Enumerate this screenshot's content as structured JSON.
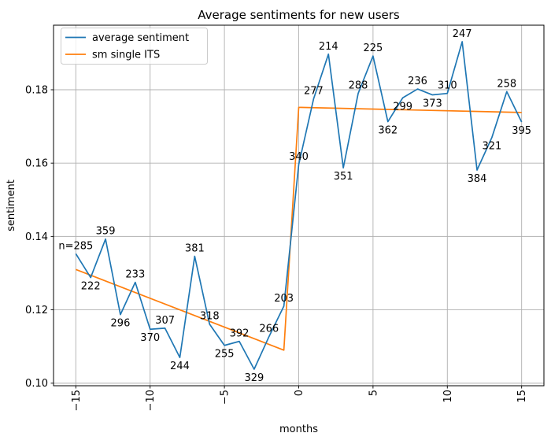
{
  "figure": {
    "background": "#ffffff"
  },
  "chart_data": {
    "type": "line",
    "title": "Average sentiments for new users",
    "xlabel": "months",
    "ylabel": "sentiment",
    "xlim": [
      -16.5,
      16.5
    ],
    "ylim": [
      0.0993,
      0.1976
    ],
    "grid": true,
    "legend_position": "upper left",
    "xticks": [
      -15,
      -10,
      -5,
      0,
      5,
      10,
      15
    ],
    "xtick_labels": [
      "−15",
      "−10",
      "−5",
      "0",
      "5",
      "10",
      "15"
    ],
    "yticks": [
      0.1,
      0.12,
      0.14,
      0.16,
      0.18
    ],
    "ytick_labels": [
      "0.10",
      "0.12",
      "0.14",
      "0.16",
      "0.18"
    ],
    "colors": {
      "average_sentiment": "#1f77b4",
      "sm_single_its": "#ff7f0e",
      "grid": "#b0b0b0",
      "spine": "#000000",
      "legend_border": "#cccccc"
    },
    "series": [
      {
        "name": "average sentiment",
        "x": [
          -15,
          -14,
          -13,
          -12,
          -11,
          -10,
          -9,
          -8,
          -7,
          -6,
          -5,
          -4,
          -3,
          -2,
          -1,
          0,
          1,
          2,
          3,
          4,
          5,
          6,
          7,
          8,
          9,
          10,
          11,
          12,
          13,
          14,
          15
        ],
        "y": [
          0.1353,
          0.1288,
          0.1393,
          0.1187,
          0.1275,
          0.1147,
          0.115,
          0.107,
          0.1346,
          0.1161,
          0.1103,
          0.1114,
          0.1038,
          0.1127,
          0.121,
          0.1596,
          0.1775,
          0.1897,
          0.1587,
          0.179,
          0.1892,
          0.1713,
          0.1778,
          0.1802,
          0.1786,
          0.179,
          0.1931,
          0.1581,
          0.167,
          0.1795,
          0.1712
        ],
        "point_labels": [
          "n=285",
          "222",
          "359",
          "296",
          "233",
          "370",
          "307",
          "244",
          "381",
          "318",
          "255",
          "392",
          "329",
          "266",
          "203",
          "340",
          "277",
          "214",
          "351",
          "288",
          "225",
          "362",
          "299",
          "236",
          "373",
          "310",
          "247",
          "384",
          "321",
          "258",
          "395"
        ],
        "label_side": [
          "above",
          "below",
          "above",
          "below",
          "above",
          "below",
          "above",
          "below",
          "above",
          "above",
          "below",
          "above",
          "below",
          "above",
          "above",
          "above",
          "above",
          "above",
          "below",
          "above",
          "above",
          "below",
          "below",
          "above",
          "below",
          "above",
          "above",
          "below",
          "below",
          "above",
          "below"
        ]
      },
      {
        "name": "sm single ITS",
        "x": [
          -15,
          -1,
          0,
          15
        ],
        "y": [
          0.131,
          0.109,
          0.1752,
          0.1738
        ]
      }
    ]
  }
}
